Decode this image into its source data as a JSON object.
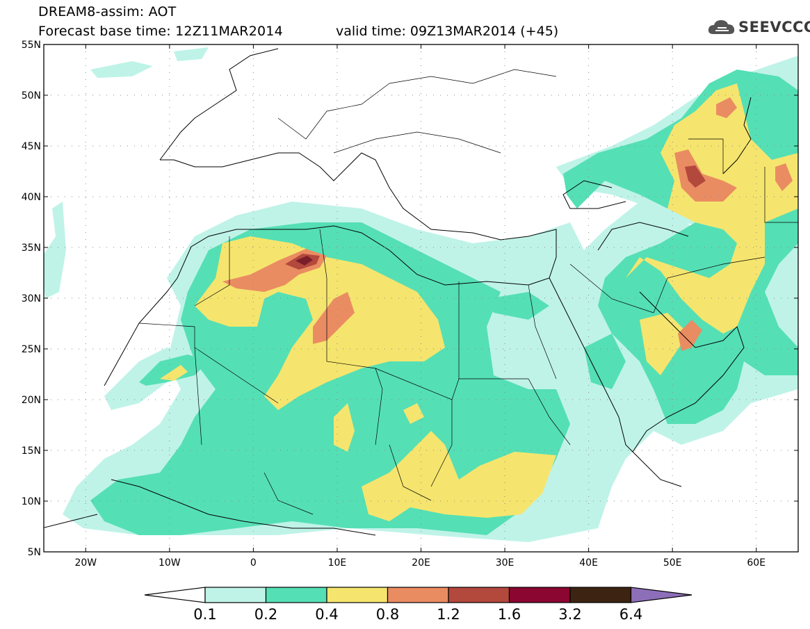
{
  "title": {
    "line1": "DREAM8-assim: AOT",
    "base": "Forecast base time: 12Z11MAR2014",
    "valid": "valid time: 09Z13MAR2014 (+45)"
  },
  "logo": {
    "text": "SEEVCCC",
    "icon": "cloud-icon"
  },
  "map": {
    "lon_range": [
      -25,
      65
    ],
    "lat_range": [
      5,
      55
    ],
    "lat_labels": [
      "55N",
      "50N",
      "45N",
      "40N",
      "35N",
      "30N",
      "25N",
      "20N",
      "15N",
      "10N",
      "5N"
    ],
    "lat_values": [
      55,
      50,
      45,
      40,
      35,
      30,
      25,
      20,
      15,
      10,
      5
    ],
    "lon_labels": [
      "20W",
      "10W",
      "0",
      "10E",
      "20E",
      "30E",
      "40E",
      "50E",
      "60E"
    ],
    "lon_values": [
      -20,
      -10,
      0,
      10,
      20,
      30,
      40,
      50,
      60
    ],
    "grid": "dotted"
  },
  "legend": {
    "labels": [
      "0.1",
      "0.2",
      "0.4",
      "0.8",
      "1.2",
      "1.6",
      "3.2",
      "6.4"
    ],
    "colors": [
      "#ffffff",
      "#bff3e8",
      "#55dfb5",
      "#f5e56e",
      "#ea8c62",
      "#b3483d",
      "#8b0631",
      "#3d2412",
      "#8d6eb8"
    ]
  },
  "colors": {
    "c1": "#bff3e8",
    "c2": "#55dfb5",
    "c3": "#f5e56e",
    "c4": "#ea8c62",
    "c5": "#b3483d",
    "c6": "#7a1e2a",
    "land": "#ffffff"
  }
}
